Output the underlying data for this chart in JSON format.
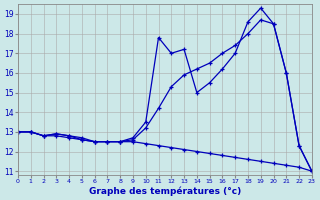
{
  "xlabel": "Graphe des températures (°c)",
  "background_color": "#cce8e8",
  "line_color": "#0000bb",
  "xlim": [
    0,
    23
  ],
  "ylim": [
    10.8,
    19.5
  ],
  "yticks": [
    11,
    12,
    13,
    14,
    15,
    16,
    17,
    18,
    19
  ],
  "xticks": [
    0,
    1,
    2,
    3,
    4,
    5,
    6,
    7,
    8,
    9,
    10,
    11,
    12,
    13,
    14,
    15,
    16,
    17,
    18,
    19,
    20,
    21,
    22,
    23
  ],
  "line1_x": [
    0,
    1,
    2,
    3,
    4,
    5,
    6,
    7,
    8,
    9,
    10,
    11,
    12,
    13,
    14,
    15,
    16,
    17,
    18,
    19,
    20,
    21,
    22,
    23
  ],
  "line1_y": [
    13.0,
    13.0,
    12.8,
    12.9,
    12.8,
    12.6,
    12.5,
    12.5,
    12.5,
    12.6,
    13.2,
    14.2,
    15.3,
    15.9,
    16.2,
    16.5,
    17.0,
    17.4,
    18.0,
    18.7,
    18.5,
    16.0,
    12.3,
    11.0
  ],
  "line2_x": [
    0,
    1,
    2,
    3,
    4,
    5,
    6,
    7,
    8,
    9,
    10,
    11,
    12,
    13,
    14,
    15,
    16,
    17,
    18,
    19,
    20,
    21,
    22,
    23
  ],
  "line2_y": [
    13.0,
    13.0,
    12.8,
    12.9,
    12.8,
    12.7,
    12.5,
    12.5,
    12.5,
    12.7,
    13.5,
    17.8,
    17.0,
    17.2,
    15.0,
    15.5,
    16.2,
    17.0,
    18.6,
    19.3,
    18.5,
    16.0,
    12.3,
    11.0
  ],
  "line3_x": [
    0,
    1,
    2,
    3,
    4,
    5,
    6,
    7,
    8,
    9,
    10,
    11,
    12,
    13,
    14,
    15,
    16,
    17,
    18,
    19,
    20,
    21,
    22,
    23
  ],
  "line3_y": [
    13.0,
    13.0,
    12.8,
    12.8,
    12.7,
    12.6,
    12.5,
    12.5,
    12.5,
    12.5,
    12.4,
    12.3,
    12.2,
    12.1,
    12.0,
    11.9,
    11.8,
    11.7,
    11.6,
    11.5,
    11.4,
    11.3,
    11.2,
    11.0
  ]
}
